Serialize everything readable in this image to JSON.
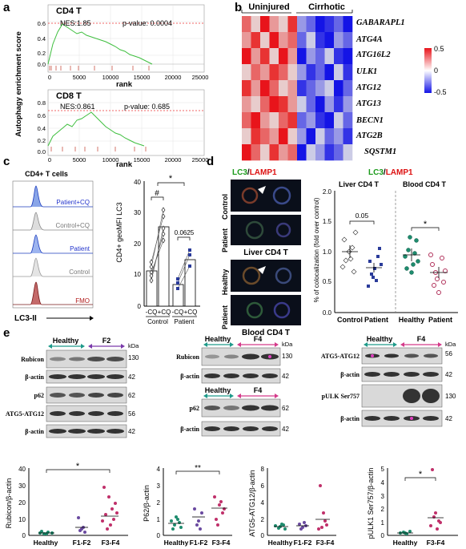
{
  "panel_letters": [
    "a",
    "b",
    "c",
    "d",
    "e"
  ],
  "a": {
    "ylabel": "Autophagy enrichment score",
    "xlabel": "rank",
    "top": {
      "title": "CD4 T",
      "nes": "NES:1.85",
      "pval": "p-value: 0.0004",
      "yticks": [
        "0.6",
        "0.4",
        "0.2",
        "0.0"
      ],
      "xticks": [
        "0",
        "5000",
        "10000",
        "15000",
        "20000",
        "25000"
      ]
    },
    "bottom": {
      "title": "CD8 T",
      "nes": "NES:0.861",
      "pval": "p-value: 0.685",
      "yticks": [
        "0.8",
        "0.6",
        "0.4",
        "0.2",
        "0.0"
      ],
      "xticks": [
        "0",
        "5000",
        "10000",
        "15000",
        "20000",
        "25000"
      ]
    }
  },
  "b": {
    "group1": "Uninjured",
    "group2": "Cirrhotic",
    "genes": [
      "GABARAPL1",
      "ATG4A",
      "ATG16L2",
      "ULK1",
      "ATG12",
      "ATG13",
      "BECN1",
      "ATG2B",
      "SQSTM1"
    ],
    "legend": [
      "0.5",
      "0",
      "-0.5"
    ],
    "colors": {
      "high": "#e8141b",
      "mid": "#ffffff",
      "low": "#1414e6"
    }
  },
  "c": {
    "flow_title": "CD4+ T cells",
    "flow_labels": [
      "Patient+CQ",
      "Control+CQ",
      "Patient",
      "Control",
      "FMO"
    ],
    "flow_xlabel": "LC3-II",
    "ylabel": "CD4+ geoMFI LC3",
    "yticks": [
      "40",
      "30",
      "20",
      "10",
      "0"
    ],
    "xticks": [
      "-CQ",
      "+CQ",
      "-CQ",
      "+CQ"
    ],
    "groups": [
      "Control",
      "Patient"
    ],
    "sig": [
      "#",
      "0.0625",
      "*"
    ]
  },
  "d": {
    "title_lc3": "LC3",
    "title_lamp": "LAMP1",
    "slash": "/",
    "row_labels": [
      "Control",
      "Patient",
      "Healthy",
      "Patient"
    ],
    "captions": [
      "Liver CD4 T",
      "Blood CD4 T"
    ],
    "plot_titles": [
      "Liver CD4 T",
      "Blood CD4 T"
    ],
    "ylabel": "% of colocalization (fold over control)",
    "yticks": [
      "2.0",
      "1.5",
      "1.0",
      "0.5",
      "0.0"
    ],
    "sig": [
      "0.05",
      "*"
    ],
    "xlabels": [
      "Control",
      "Patient",
      "Healthy",
      "Patient"
    ]
  },
  "e": {
    "kda": "kDa",
    "blot1": {
      "g1": "Healthy",
      "g2": "F2",
      "rows": [
        "Rubicon",
        "β-actin",
        "p62",
        "ATG5-ATG12",
        "β-actin"
      ],
      "kda": [
        "130",
        "42",
        "62",
        "56",
        "42"
      ]
    },
    "blot2": {
      "g1": "Healthy",
      "g2": "F4",
      "rows": [
        "Rubicon",
        "β-actin",
        "p62",
        "β-actin"
      ],
      "kda": [
        "130",
        "42",
        "62",
        "42"
      ],
      "g1b": "Healthy",
      "g2b": "F4"
    },
    "blot3": {
      "g1": "Healthy",
      "g2": "F4",
      "rows": [
        "ATG5-ATG12",
        "β-actin",
        "pULK Ser757",
        "β-actin"
      ],
      "kda": [
        "56",
        "42",
        "130",
        "42"
      ]
    },
    "plots": [
      {
        "ylabel": "Rubicon/β-actin",
        "yticks": [
          "40",
          "30",
          "20",
          "10",
          "0"
        ],
        "x": [
          "Healthy",
          "F1-F2",
          "F3-F4"
        ],
        "sig": "*"
      },
      {
        "ylabel": "P62/β-actin",
        "yticks": [
          "4",
          "3",
          "2",
          "1",
          "0"
        ],
        "x": [
          "Healthy",
          "F1-F2",
          "F3-F4"
        ],
        "sig": "**"
      },
      {
        "ylabel": "ATG5-ATG12/β-actin",
        "yticks": [
          "8",
          "6",
          "4",
          "2",
          "0"
        ],
        "x": [
          "Healthy",
          "F1-F2",
          "F3-F4"
        ],
        "sig": ""
      },
      {
        "ylabel": "pULK1 Ser757/β-actin",
        "yticks": [
          "5",
          "4",
          "3",
          "2",
          "1",
          "0"
        ],
        "x": [
          "Healthy",
          "F3-F4"
        ],
        "sig": "*"
      }
    ]
  }
}
